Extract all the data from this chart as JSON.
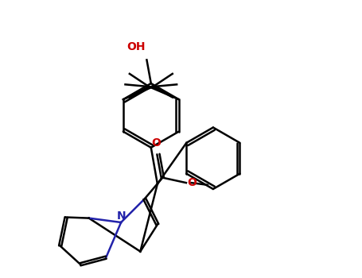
{
  "bg_color": "#ffffff",
  "bond_color": "#000000",
  "N_color": "#2222aa",
  "O_color": "#cc0000",
  "lw": 1.8,
  "fig_width": 4.55,
  "fig_height": 3.5,
  "dpi": 100,
  "OH_text": "OH",
  "O_text": "O",
  "N_text": "N"
}
